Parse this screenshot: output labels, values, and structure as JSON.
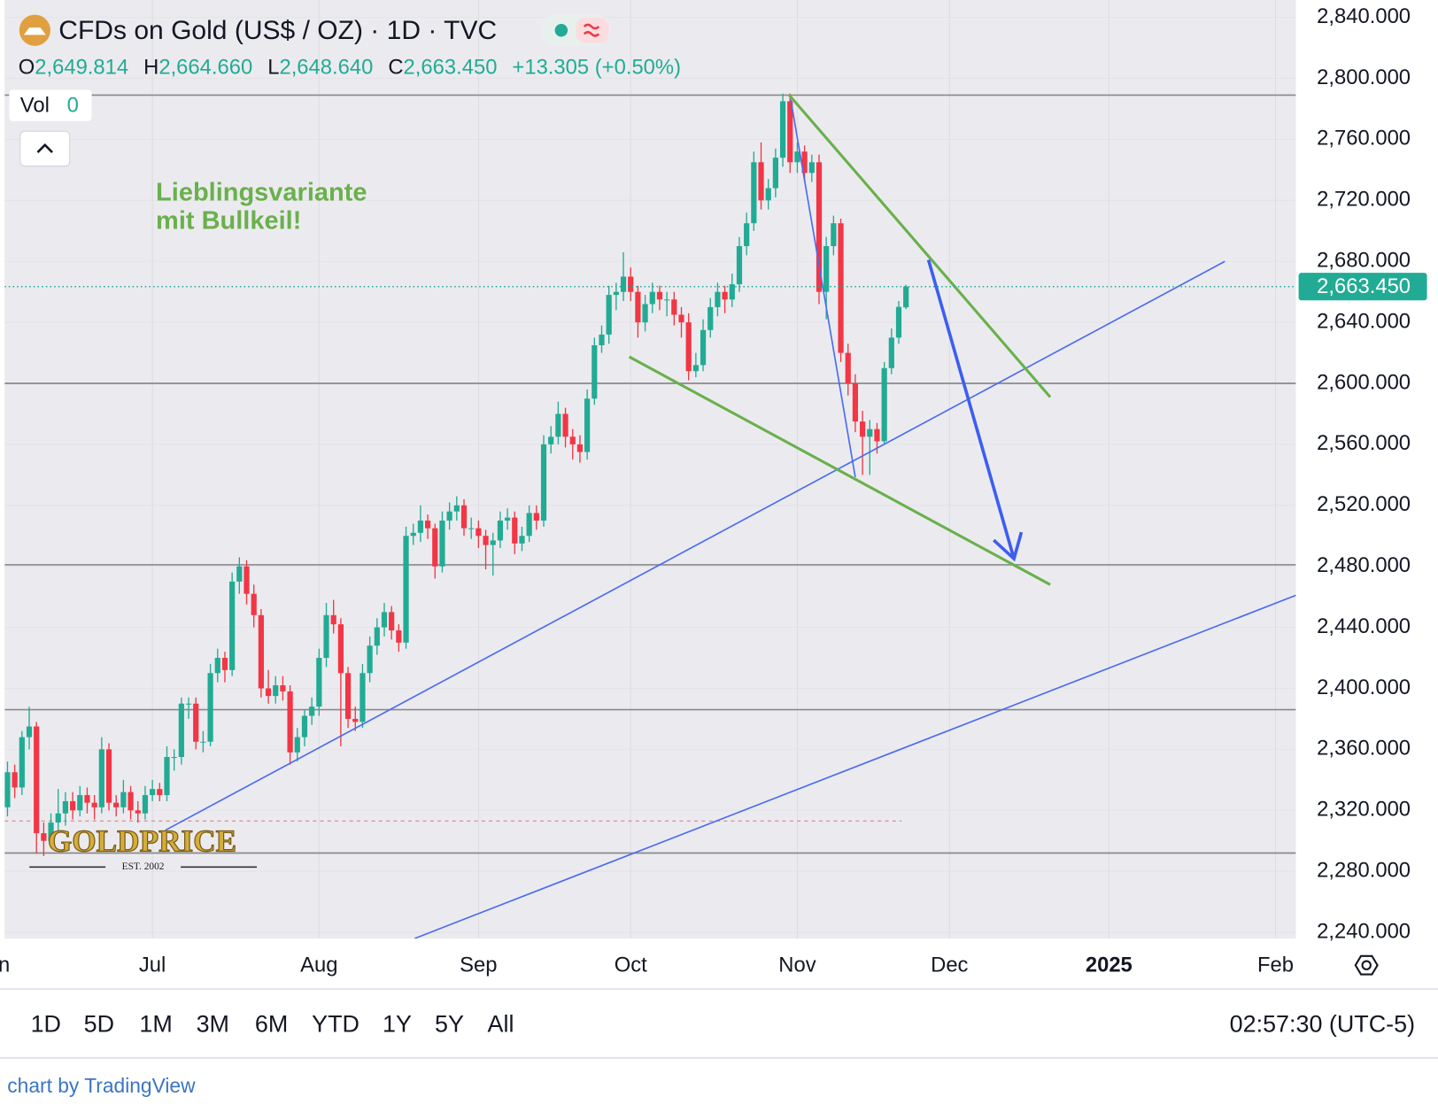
{
  "chart_data": {
    "type": "candlestick",
    "title": "CFDs on Gold (US$ / OZ) · 1D · TVC",
    "ohlc_header": [
      {
        "key": "O",
        "value": "2,649.814"
      },
      {
        "key": "H",
        "value": "2,664.660"
      },
      {
        "key": "L",
        "value": "2,648.640"
      },
      {
        "key": "C",
        "value": "2,663.450"
      }
    ],
    "change": "+13.305 (+0.50%)",
    "volume_label": "Vol",
    "volume": 0,
    "up_color": "#22ab94",
    "down_color": "#f23645",
    "ohlc": [
      [
        2322,
        2352,
        2316,
        2345
      ],
      [
        2345,
        2350,
        2328,
        2335
      ],
      [
        2335,
        2372,
        2330,
        2368
      ],
      [
        2368,
        2388,
        2360,
        2375
      ],
      [
        2375,
        2378,
        2292,
        2305
      ],
      [
        2305,
        2312,
        2290,
        2300
      ],
      [
        2300,
        2318,
        2296,
        2312
      ],
      [
        2312,
        2334,
        2306,
        2318
      ],
      [
        2318,
        2332,
        2310,
        2326
      ],
      [
        2326,
        2332,
        2314,
        2320
      ],
      [
        2320,
        2336,
        2316,
        2330
      ],
      [
        2330,
        2335,
        2318,
        2325
      ],
      [
        2325,
        2330,
        2314,
        2322
      ],
      [
        2322,
        2368,
        2318,
        2360
      ],
      [
        2360,
        2364,
        2320,
        2325
      ],
      [
        2325,
        2330,
        2316,
        2322
      ],
      [
        2322,
        2340,
        2318,
        2332
      ],
      [
        2332,
        2336,
        2314,
        2320
      ],
      [
        2320,
        2326,
        2312,
        2318
      ],
      [
        2318,
        2336,
        2314,
        2330
      ],
      [
        2330,
        2340,
        2326,
        2334
      ],
      [
        2334,
        2338,
        2326,
        2330
      ],
      [
        2330,
        2362,
        2326,
        2355
      ],
      [
        2355,
        2360,
        2346,
        2355
      ],
      [
        2355,
        2394,
        2350,
        2390
      ],
      [
        2390,
        2394,
        2380,
        2390
      ],
      [
        2390,
        2394,
        2360,
        2365
      ],
      [
        2365,
        2372,
        2358,
        2365
      ],
      [
        2365,
        2416,
        2362,
        2410
      ],
      [
        2410,
        2426,
        2404,
        2420
      ],
      [
        2420,
        2424,
        2404,
        2412
      ],
      [
        2412,
        2476,
        2408,
        2470
      ],
      [
        2470,
        2486,
        2462,
        2480
      ],
      [
        2480,
        2484,
        2455,
        2462
      ],
      [
        2462,
        2468,
        2440,
        2448
      ],
      [
        2448,
        2452,
        2394,
        2400
      ],
      [
        2400,
        2412,
        2390,
        2395
      ],
      [
        2395,
        2408,
        2390,
        2402
      ],
      [
        2402,
        2408,
        2392,
        2398
      ],
      [
        2398,
        2402,
        2350,
        2358
      ],
      [
        2358,
        2374,
        2352,
        2368
      ],
      [
        2368,
        2386,
        2362,
        2382
      ],
      [
        2382,
        2394,
        2376,
        2388
      ],
      [
        2388,
        2426,
        2382,
        2420
      ],
      [
        2420,
        2456,
        2414,
        2448
      ],
      [
        2448,
        2458,
        2436,
        2442
      ],
      [
        2442,
        2446,
        2362,
        2410
      ],
      [
        2410,
        2414,
        2374,
        2380
      ],
      [
        2380,
        2388,
        2372,
        2378
      ],
      [
        2378,
        2416,
        2374,
        2410
      ],
      [
        2410,
        2434,
        2404,
        2428
      ],
      [
        2428,
        2446,
        2422,
        2440
      ],
      [
        2440,
        2456,
        2434,
        2450
      ],
      [
        2450,
        2454,
        2432,
        2438
      ],
      [
        2438,
        2442,
        2424,
        2430
      ],
      [
        2430,
        2506,
        2426,
        2500
      ],
      [
        2500,
        2508,
        2494,
        2502
      ],
      [
        2502,
        2520,
        2496,
        2510
      ],
      [
        2510,
        2514,
        2498,
        2505
      ],
      [
        2505,
        2508,
        2472,
        2480
      ],
      [
        2480,
        2516,
        2476,
        2510
      ],
      [
        2510,
        2522,
        2504,
        2516
      ],
      [
        2516,
        2526,
        2510,
        2520
      ],
      [
        2520,
        2524,
        2500,
        2505
      ],
      [
        2505,
        2512,
        2498,
        2505
      ],
      [
        2505,
        2510,
        2492,
        2500
      ],
      [
        2500,
        2504,
        2478,
        2494
      ],
      [
        2494,
        2502,
        2474,
        2497
      ],
      [
        2497,
        2516,
        2492,
        2510
      ],
      [
        2510,
        2518,
        2504,
        2512
      ],
      [
        2512,
        2516,
        2488,
        2495
      ],
      [
        2495,
        2506,
        2490,
        2500
      ],
      [
        2500,
        2520,
        2496,
        2515
      ],
      [
        2515,
        2520,
        2504,
        2510
      ],
      [
        2510,
        2566,
        2506,
        2560
      ],
      [
        2560,
        2572,
        2554,
        2565
      ],
      [
        2565,
        2588,
        2560,
        2580
      ],
      [
        2580,
        2584,
        2558,
        2565
      ],
      [
        2565,
        2570,
        2550,
        2560
      ],
      [
        2560,
        2566,
        2548,
        2555
      ],
      [
        2555,
        2596,
        2550,
        2590
      ],
      [
        2590,
        2630,
        2586,
        2625
      ],
      [
        2625,
        2638,
        2620,
        2632
      ],
      [
        2632,
        2664,
        2626,
        2658
      ],
      [
        2658,
        2666,
        2648,
        2660
      ],
      [
        2660,
        2686,
        2654,
        2670
      ],
      [
        2670,
        2676,
        2654,
        2660
      ],
      [
        2660,
        2664,
        2630,
        2640
      ],
      [
        2640,
        2658,
        2634,
        2652
      ],
      [
        2652,
        2666,
        2646,
        2660
      ],
      [
        2660,
        2664,
        2648,
        2655
      ],
      [
        2655,
        2660,
        2644,
        2655
      ],
      [
        2655,
        2660,
        2638,
        2645
      ],
      [
        2645,
        2650,
        2630,
        2640
      ],
      [
        2640,
        2646,
        2602,
        2608
      ],
      [
        2608,
        2620,
        2604,
        2612
      ],
      [
        2612,
        2642,
        2608,
        2635
      ],
      [
        2635,
        2656,
        2630,
        2650
      ],
      [
        2650,
        2666,
        2644,
        2660
      ],
      [
        2660,
        2664,
        2646,
        2655
      ],
      [
        2655,
        2672,
        2650,
        2665
      ],
      [
        2665,
        2696,
        2660,
        2690
      ],
      [
        2690,
        2712,
        2684,
        2705
      ],
      [
        2705,
        2752,
        2700,
        2745
      ],
      [
        2745,
        2758,
        2714,
        2720
      ],
      [
        2720,
        2734,
        2714,
        2728
      ],
      [
        2728,
        2754,
        2722,
        2748
      ],
      [
        2748,
        2790,
        2742,
        2785
      ],
      [
        2785,
        2790,
        2738,
        2745
      ],
      [
        2745,
        2758,
        2738,
        2752
      ],
      [
        2752,
        2756,
        2732,
        2738
      ],
      [
        2738,
        2750,
        2732,
        2745
      ],
      [
        2745,
        2750,
        2652,
        2660
      ],
      [
        2660,
        2696,
        2642,
        2690
      ],
      [
        2690,
        2710,
        2684,
        2705
      ],
      [
        2705,
        2708,
        2614,
        2620
      ],
      [
        2620,
        2626,
        2592,
        2600
      ],
      [
        2600,
        2606,
        2568,
        2575
      ],
      [
        2575,
        2582,
        2540,
        2565
      ],
      [
        2565,
        2576,
        2540,
        2570
      ],
      [
        2570,
        2574,
        2554,
        2562
      ],
      [
        2562,
        2614,
        2560,
        2610
      ],
      [
        2610,
        2636,
        2606,
        2630
      ],
      [
        2630,
        2654,
        2626,
        2650.145
      ],
      [
        2649.814,
        2664.66,
        2648.64,
        2663.45
      ]
    ],
    "xlim": [
      -0.4,
      177.8
    ],
    "xticks": [
      {
        "value": -2,
        "label": "Jun"
      },
      {
        "value": 20,
        "label": "Jul"
      },
      {
        "value": 43,
        "label": "Aug"
      },
      {
        "value": 65,
        "label": "Sep"
      },
      {
        "value": 86,
        "label": "Oct"
      },
      {
        "value": 109,
        "label": "Nov"
      },
      {
        "value": 130,
        "label": "Dec"
      },
      {
        "value": 152,
        "label": "2025"
      },
      {
        "value": 175,
        "label": "Feb"
      }
    ],
    "ylim": [
      2235.9,
      2851.4
    ],
    "yticks": [
      {
        "value": 2240,
        "label": "2,240.000"
      },
      {
        "value": 2280,
        "label": "2,280.000"
      },
      {
        "value": 2320,
        "label": "2,320.000"
      },
      {
        "value": 2360,
        "label": "2,360.000"
      },
      {
        "value": 2400,
        "label": "2,400.000"
      },
      {
        "value": 2440,
        "label": "2,440.000"
      },
      {
        "value": 2480,
        "label": "2,480.000"
      },
      {
        "value": 2520,
        "label": "2,520.000"
      },
      {
        "value": 2560,
        "label": "2,560.000"
      },
      {
        "value": 2600,
        "label": "2,600.000"
      },
      {
        "value": 2640,
        "label": "2,640.000"
      },
      {
        "value": 2680,
        "label": "2,680.000"
      },
      {
        "value": 2720,
        "label": "2,720.000"
      },
      {
        "value": 2760,
        "label": "2,760.000"
      },
      {
        "value": 2800,
        "label": "2,800.000"
      },
      {
        "value": 2840,
        "label": "2,840.000"
      }
    ],
    "grid": true,
    "last_price": {
      "value": 2663.45,
      "label": "2,663.450"
    },
    "hlines": [
      2789,
      2600,
      2481,
      2386,
      2292
    ],
    "hline_color": "#8a8a8e",
    "dashed_level": {
      "value": 2313,
      "end": 123.4
    },
    "trendlines": [
      {
        "color": "#4a6cf0",
        "points": [
          [
            21.8,
            2307
          ],
          [
            168,
            2680
          ]
        ]
      },
      {
        "color": "#4a6cf0",
        "points": [
          [
            56.2,
            2236
          ],
          [
            177.8,
            2461
          ]
        ]
      },
      {
        "color": "#6ab04c",
        "points": [
          [
            107.8,
            2789.5
          ],
          [
            143.9,
            2591
          ]
        ]
      },
      {
        "color": "#6ab04c",
        "points": [
          [
            85.8,
            2617.4
          ],
          [
            143.9,
            2468
          ]
        ]
      },
      {
        "color": "#4a6cf0",
        "points": [
          [
            108.1,
            2786
          ],
          [
            117,
            2538.5
          ]
        ]
      }
    ],
    "arrow": {
      "color": "#3d5ef0",
      "points": [
        [
          127.1,
          2681
        ],
        [
          138.9,
          2485
        ]
      ]
    },
    "annotation": [
      "Lieblingsvariante",
      "mit Bullkeil!"
    ],
    "annotation_color": "#6ab04c",
    "logo": "GOLDPRICE",
    "logo_sub": "EST. 2002"
  },
  "range_buttons": [
    "1D",
    "5D",
    "1M",
    "3M",
    "6M",
    "YTD",
    "1Y",
    "5Y",
    "All"
  ],
  "clock": "02:57:30 (UTC-5)",
  "credit": "chart by TradingView"
}
